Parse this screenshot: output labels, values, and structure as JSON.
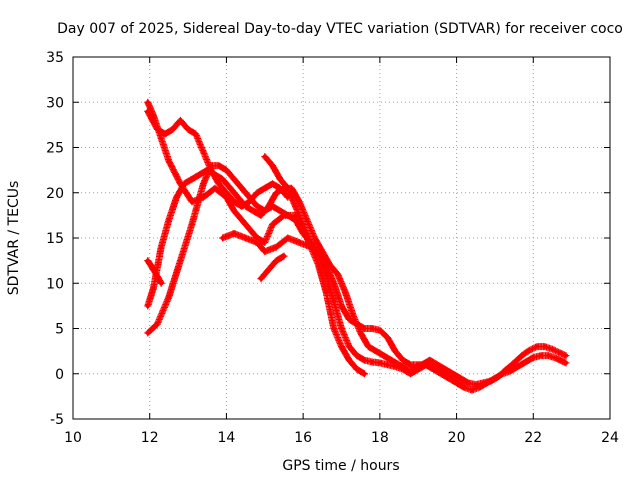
{
  "chart_data": {
    "type": "scatter",
    "title": "Day 007 of 2025, Sidereal Day-to-day VTEC variation (SDTVAR) for receiver coco",
    "xlabel": "GPS time / hours",
    "ylabel": "SDTVAR / TECUs",
    "xlim": [
      10,
      24
    ],
    "ylim": [
      -5,
      35
    ],
    "xticks": [
      "10",
      "12",
      "14",
      "16",
      "18",
      "20",
      "22",
      "24"
    ],
    "yticks": [
      "-5",
      "0",
      "5",
      "10",
      "15",
      "20",
      "25",
      "30",
      "35"
    ],
    "grid": true,
    "marker": "+",
    "series_color": "#ff0000",
    "series": [
      {
        "name": "trace-1",
        "x": [
          11.95,
          12.1,
          12.3,
          12.5,
          12.8,
          13.1,
          13.4,
          13.7,
          14.0,
          14.2,
          14.5,
          14.8,
          15.0,
          15.2,
          15.5,
          15.8,
          16.0,
          16.2,
          16.4,
          16.6,
          16.8,
          17.0,
          17.2,
          17.4,
          17.6
        ],
        "y": [
          30,
          28.5,
          26,
          23.5,
          21,
          19,
          19.5,
          20.5,
          19.5,
          18,
          16.5,
          15,
          14.5,
          16.5,
          17.5,
          17.5,
          16,
          14,
          12,
          9,
          5,
          3,
          1.5,
          0.5,
          0
        ]
      },
      {
        "name": "trace-2",
        "x": [
          11.95,
          12.2,
          12.4,
          12.6,
          12.8,
          13.0,
          13.2,
          13.4,
          13.6,
          13.8,
          14.0,
          14.2,
          14.4,
          14.6,
          14.8,
          15.0,
          15.2,
          15.4,
          15.6
        ],
        "y": [
          29,
          27,
          26.5,
          27,
          28,
          27,
          26.5,
          24.5,
          22.5,
          21,
          20,
          19,
          18.5,
          19,
          20,
          20.5,
          21,
          20.5,
          19.5
        ]
      },
      {
        "name": "trace-3",
        "x": [
          15.0,
          15.2,
          15.4,
          15.6,
          15.8,
          16.0,
          16.2,
          16.4,
          16.6,
          16.8,
          17.0,
          17.2,
          17.4,
          17.6,
          17.8,
          18.0,
          18.2,
          18.4,
          18.6,
          18.8,
          19.0,
          19.2,
          19.4,
          19.6,
          19.8,
          20.0,
          20.2,
          20.4,
          20.6,
          20.8,
          21.0,
          21.2,
          21.4,
          21.6,
          21.8,
          22.0,
          22.2,
          22.4,
          22.6,
          22.85
        ],
        "y": [
          24,
          23,
          21.5,
          20.5,
          18.5,
          16.5,
          14.5,
          13,
          12,
          10,
          7.5,
          6,
          5.5,
          5,
          5,
          4.8,
          4,
          2.5,
          1.5,
          1,
          1,
          1,
          0.5,
          0,
          -0.5,
          -1,
          -1.5,
          -1.8,
          -1.5,
          -1,
          -0.5,
          0,
          0.3,
          0.8,
          1.3,
          1.8,
          2,
          2,
          1.7,
          1.2
        ]
      },
      {
        "name": "trace-4",
        "x": [
          11.95,
          12.1,
          12.3,
          12.5,
          12.7,
          12.9,
          13.1,
          13.3,
          13.5,
          13.7,
          13.9,
          14.1,
          14.3,
          14.5,
          14.7,
          14.9,
          15.1,
          15.3,
          15.5,
          15.7,
          15.9,
          16.1,
          16.3,
          16.5,
          16.7,
          16.9,
          17.1,
          17.3,
          17.5,
          17.7,
          17.9,
          18.1,
          18.3,
          18.5,
          18.7,
          18.9,
          19.1,
          19.3,
          19.5,
          19.7,
          19.9,
          20.1,
          20.3,
          20.5,
          20.7,
          20.9,
          21.1,
          21.3,
          21.5,
          21.7,
          21.9,
          22.1,
          22.3,
          22.5,
          22.7,
          22.85
        ],
        "y": [
          7.5,
          9.5,
          14,
          17,
          19.5,
          21,
          21.5,
          22,
          22.5,
          22,
          21.5,
          20.5,
          19.5,
          18.5,
          18,
          17.5,
          18.5,
          20,
          20.5,
          20.5,
          19,
          17,
          15,
          13.5,
          12,
          11,
          9,
          6.5,
          4.5,
          3,
          2.5,
          2,
          1.5,
          1,
          0.5,
          0.5,
          1,
          1.5,
          1,
          0.5,
          0,
          -0.5,
          -1,
          -1.2,
          -1,
          -0.8,
          -0.3,
          0.5,
          1.2,
          2,
          2.6,
          3,
          3,
          2.7,
          2.3,
          2
        ]
      },
      {
        "name": "trace-5",
        "x": [
          11.95,
          12.2,
          12.5,
          12.8,
          13.1,
          13.4,
          13.6,
          13.8,
          14.0,
          14.2,
          14.5,
          14.8,
          15.0,
          15.2,
          15.4,
          15.6,
          15.8,
          16.0,
          16.2,
          16.4,
          16.6,
          16.8,
          17.0,
          17.2,
          17.4,
          17.6,
          17.8,
          18.0,
          18.2,
          18.4,
          18.6,
          18.8,
          19.0,
          19.2,
          19.4,
          19.6,
          19.8,
          20.0,
          20.2
        ],
        "y": [
          4.5,
          5.5,
          8.5,
          12.5,
          16.5,
          21,
          23,
          23,
          22.5,
          21.5,
          20,
          18.5,
          18,
          18.5,
          18,
          17.5,
          17,
          15.5,
          14.5,
          13,
          11,
          8,
          5,
          3,
          2,
          1.5,
          1.3,
          1.2,
          1,
          0.8,
          0.5,
          0,
          0.5,
          1,
          0.5,
          0,
          -0.5,
          -1,
          -1.5
        ]
      },
      {
        "name": "trace-6",
        "x": [
          11.95,
          12.1,
          12.3
        ],
        "y": [
          12.5,
          11.5,
          10
        ]
      },
      {
        "name": "trace-7",
        "x": [
          13.9,
          14.2,
          14.5,
          14.8,
          15.0,
          15.3,
          15.6,
          15.9,
          16.2,
          16.5
        ],
        "y": [
          15,
          15.5,
          15,
          14.5,
          13.5,
          14,
          15,
          14.5,
          14,
          13
        ]
      },
      {
        "name": "trace-8",
        "x": [
          14.9,
          15.1,
          15.3,
          15.5
        ],
        "y": [
          10.5,
          11.5,
          12.5,
          13
        ]
      }
    ]
  }
}
